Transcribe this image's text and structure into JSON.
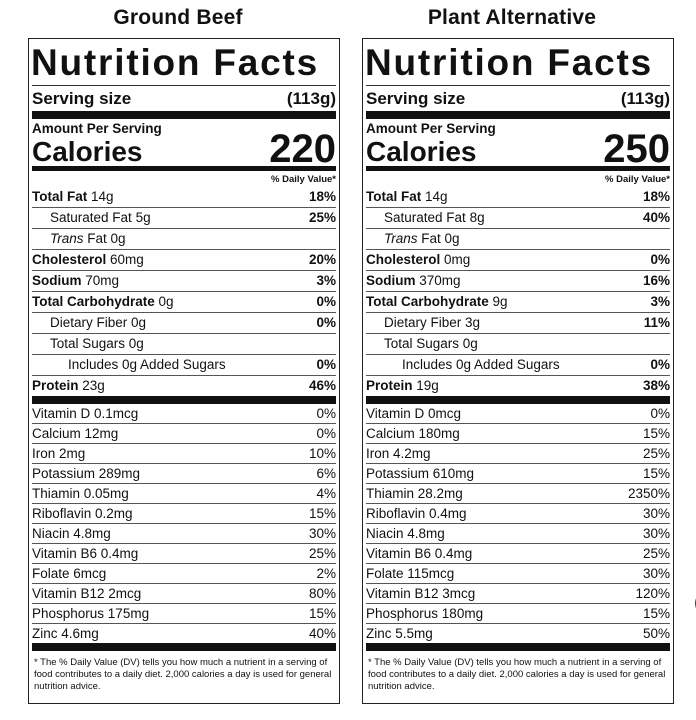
{
  "columns": [
    {
      "heading": "Ground Beef",
      "title": "Nutrition Facts",
      "serving_label": "Serving size",
      "serving_value": "(113g)",
      "amount_label": "Amount Per Serving",
      "calories_label": "Calories",
      "calories_value": "220",
      "dv_header": "% Daily Value*",
      "macros": [
        {
          "name": "Total Fat",
          "amount": " 14g",
          "dv": "18%"
        },
        {
          "name": "Saturated Fat",
          "amount": " 5g",
          "dv": "25%"
        },
        {
          "name": "Trans",
          "amount": " Fat 0g",
          "dv": ""
        },
        {
          "name": "Cholesterol",
          "amount": " 60mg",
          "dv": "20%"
        },
        {
          "name": "Sodium",
          "amount": " 70mg",
          "dv": "3%"
        },
        {
          "name": "Total Carbohydrate",
          "amount": " 0g",
          "dv": "0%"
        },
        {
          "name": "Dietary Fiber",
          "amount": " 0g",
          "dv": "0%"
        },
        {
          "name": "Total Sugars",
          "amount": " 0g",
          "dv": ""
        },
        {
          "name": "Includes 0g Added Sugars",
          "amount": "",
          "dv": "0%"
        },
        {
          "name": "Protein",
          "amount": " 23g",
          "dv": "46%"
        }
      ],
      "vitamins": [
        {
          "name": "Vitamin D 0.1mcg",
          "dv": "0%"
        },
        {
          "name": "Calcium 12mg",
          "dv": "0%"
        },
        {
          "name": "Iron 2mg",
          "dv": "10%"
        },
        {
          "name": "Potassium 289mg",
          "dv": "6%"
        },
        {
          "name": "Thiamin 0.05mg",
          "dv": "4%"
        },
        {
          "name": "Riboflavin 0.2mg",
          "dv": "15%"
        },
        {
          "name": "Niacin 4.8mg",
          "dv": "30%"
        },
        {
          "name": "Vitamin B6 0.4mg",
          "dv": "25%"
        },
        {
          "name": "Folate 6mcg",
          "dv": "2%"
        },
        {
          "name": "Vitamin B12 2mcg",
          "dv": "80%"
        },
        {
          "name": "Phosphorus 175mg",
          "dv": "15%"
        },
        {
          "name": "Zinc 4.6mg",
          "dv": "40%"
        }
      ],
      "footnote": "* The % Daily Value (DV) tells you how much a nutrient in a serving of food contributes to a daily diet. 2,000 calories a day is used for general nutrition advice."
    },
    {
      "heading": "Plant Alternative",
      "title": "Nutrition Facts",
      "serving_label": "Serving size",
      "serving_value": "(113g)",
      "amount_label": "Amount Per Serving",
      "calories_label": "Calories",
      "calories_value": "250",
      "dv_header": "% Daily Value*",
      "macros": [
        {
          "name": "Total Fat",
          "amount": " 14g",
          "dv": "18%"
        },
        {
          "name": "Saturated Fat",
          "amount": " 8g",
          "dv": "40%"
        },
        {
          "name": "Trans",
          "amount": " Fat 0g",
          "dv": ""
        },
        {
          "name": "Cholesterol",
          "amount": " 0mg",
          "dv": "0%"
        },
        {
          "name": "Sodium",
          "amount": " 370mg",
          "dv": "16%"
        },
        {
          "name": "Total Carbohydrate",
          "amount": " 9g",
          "dv": "3%"
        },
        {
          "name": "Dietary Fiber",
          "amount": " 3g",
          "dv": "11%"
        },
        {
          "name": "Total Sugars",
          "amount": " 0g",
          "dv": ""
        },
        {
          "name": "Includes 0g Added Sugars",
          "amount": "",
          "dv": "0%"
        },
        {
          "name": "Protein",
          "amount": " 19g",
          "dv": "38%"
        }
      ],
      "vitamins": [
        {
          "name": "Vitamin D 0mcg",
          "dv": "0%"
        },
        {
          "name": "Calcium 180mg",
          "dv": "15%"
        },
        {
          "name": "Iron 4.2mg",
          "dv": "25%"
        },
        {
          "name": "Potassium 610mg",
          "dv": "15%"
        },
        {
          "name": "Thiamin 28.2mg",
          "dv": "2350%"
        },
        {
          "name": "Riboflavin 0.4mg",
          "dv": "30%"
        },
        {
          "name": "Niacin 4.8mg",
          "dv": "30%"
        },
        {
          "name": "Vitamin B6 0.4mg",
          "dv": "25%"
        },
        {
          "name": "Folate 115mcg",
          "dv": "30%"
        },
        {
          "name": "Vitamin B12 3mcg",
          "dv": "120%"
        },
        {
          "name": "Phosphorus 180mg",
          "dv": "15%"
        },
        {
          "name": "Zinc 5.5mg",
          "dv": "50%"
        }
      ],
      "footnote": "* The % Daily Value (DV) tells you how much a nutrient in a serving of food contributes to a daily diet. 2,000 calories a day is used for general nutrition advice."
    }
  ],
  "edge_glyph": "("
}
